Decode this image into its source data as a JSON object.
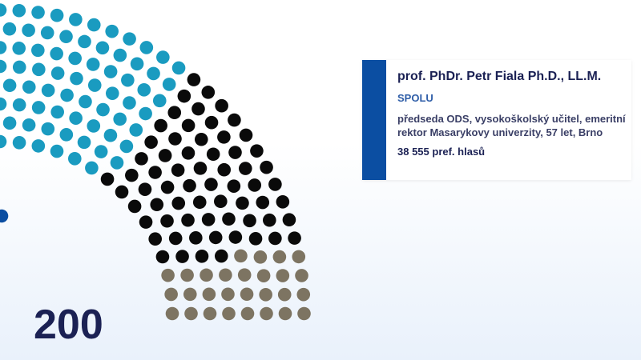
{
  "total_seats": "200",
  "tooltip": {
    "name": "prof. PhDr. Petr Fiala Ph.D., LL.M.",
    "party": "SPOLU",
    "description": "předseda ODS, vysokoškolský učitel, emeritní rektor Masarykovy univerzity, 57 let, Brno",
    "votes": "38 555 pref. hlasů"
  }
}
